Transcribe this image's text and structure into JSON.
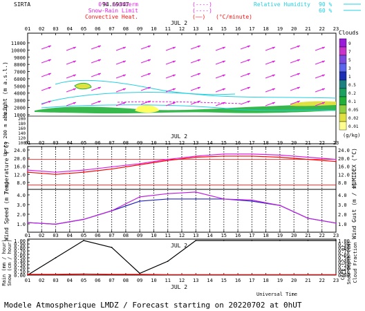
{
  "header": {
    "station": "SIRTA",
    "coords": "94.69347",
    "legend_left": [
      {
        "label": "0°C isotherm",
        "sample": "(----)",
        "color": "#e020e0"
      },
      {
        "label": "Snow-Rain Limit",
        "sample": "(----)",
        "color": "#e020e0"
      },
      {
        "label": "Convective Heat.",
        "sample": "(——)",
        "color": "#ff1010",
        "unit": "(°C/minute)"
      }
    ],
    "legend_right": {
      "label": "Relative Humidity",
      "v1": "90 %",
      "v2": "60 %",
      "color": "#20d0e0"
    }
  },
  "date_label": "JUL  2",
  "hours": [
    "01",
    "02",
    "03",
    "04",
    "05",
    "06",
    "07",
    "08",
    "09",
    "10",
    "11",
    "12",
    "13",
    "14",
    "15",
    "16",
    "17",
    "18",
    "19",
    "20",
    "21",
    "22",
    "23"
  ],
  "panel1": {
    "ylabel": "Height  (m a.s.l.)",
    "ylabel_low": "Up to 200 m a.s.l.",
    "ticks_upper": [
      "11000",
      "10000",
      "9000",
      "8000",
      "7000",
      "6000",
      "5000",
      "4000",
      "3000",
      "2000",
      "1000"
    ],
    "ticks_lower": [
      "200",
      "180",
      "160",
      "140",
      "120",
      "100"
    ],
    "clouds_title": "Clouds",
    "clouds_unit": "(g/kg)",
    "clouds_scale": [
      {
        "v": "9",
        "c": "#9a1cd8"
      },
      {
        "v": "7",
        "c": "#c832c8"
      },
      {
        "v": "5",
        "c": "#7a4ae0"
      },
      {
        "v": "3",
        "c": "#5a64ec"
      },
      {
        "v": "1",
        "c": "#1c30b4"
      },
      {
        "v": "0.5",
        "c": "#1c8080"
      },
      {
        "v": "0.2",
        "c": "#1ca060"
      },
      {
        "v": "0.1",
        "c": "#20b038"
      },
      {
        "v": "0.05",
        "c": "#90d040"
      },
      {
        "v": "0.02",
        "c": "#e0e040"
      },
      {
        "v": "0.01",
        "c": "#ffff90"
      }
    ]
  },
  "panel2": {
    "ylabel": "Temperature (°C)",
    "ylabel_right": "HUMIDEX (°C)",
    "ticks": [
      "24.0",
      "20.0",
      "16.0",
      "12.0",
      "8.0"
    ]
  },
  "panel3": {
    "ylabel": "Wind Speed (m / s)",
    "ylabel_right": "Wind Gust (m / s)",
    "ticks": [
      "4.0",
      "3.0",
      "2.0",
      "1.0"
    ]
  },
  "panel4": {
    "ylabel": "Rain (mm / hour)",
    "ylabel2": "Snow (cm / hour)",
    "ylabel_right": "CAPE (J / g)",
    "ylabel_right2": "Snow Depth (cm)",
    "ylabel_right3": "Cloud Fraction",
    "ticks": [
      "1.00",
      "0.90",
      "0.80",
      "0.70",
      "0.60",
      "0.50",
      "0.40",
      "0.30",
      "0.20",
      "0.10",
      "0.00"
    ]
  },
  "footer": {
    "xlabel": "Universal Time",
    "title": "Modele Atmospherique LMDZ / Forecast starting on 20220702 at 0hUT"
  },
  "chart_data": [
    {
      "type": "line",
      "name": "temperature",
      "x": [
        "01",
        "03",
        "05",
        "07",
        "09",
        "11",
        "13",
        "15",
        "17",
        "19",
        "21",
        "23"
      ],
      "series": [
        {
          "values": [
            14.0,
            13.0,
            14.0,
            15.5,
            17.5,
            19.5,
            21.0,
            21.5,
            21.5,
            21.0,
            20.0,
            19.0
          ],
          "color": "#ff0000"
        },
        {
          "values": [
            15.0,
            14.0,
            15.0,
            16.5,
            18.0,
            20.0,
            21.5,
            22.5,
            22.5,
            22.0,
            21.0,
            20.0
          ],
          "color": "#e020e0"
        }
      ],
      "ylim": [
        6,
        26
      ],
      "reflines": [
        20.0,
        8.0
      ]
    },
    {
      "type": "line",
      "name": "wind",
      "x": [
        "01",
        "03",
        "05",
        "07",
        "09",
        "11",
        "13",
        "15",
        "17",
        "19",
        "21",
        "23"
      ],
      "series": [
        {
          "values": [
            0.9,
            0.75,
            1.2,
            2.0,
            2.9,
            3.1,
            3.1,
            3.1,
            2.9,
            2.5,
            1.3,
            0.85
          ],
          "color": "#2020c0"
        },
        {
          "values": [
            0.9,
            0.75,
            1.2,
            2.0,
            3.3,
            3.6,
            3.75,
            3.1,
            3.0,
            2.5,
            1.3,
            0.85
          ],
          "color": "#c020e0"
        }
      ],
      "ylim": [
        0,
        4.0
      ]
    },
    {
      "type": "line",
      "name": "precip",
      "x": [
        "01",
        "03",
        "05",
        "07",
        "09",
        "11",
        "13",
        "15",
        "17",
        "19",
        "21",
        "23"
      ],
      "series": [
        {
          "values": [
            0.0,
            0.5,
            1.0,
            0.8,
            0.05,
            0.4,
            1.0,
            1.0,
            1.0,
            1.0,
            1.0,
            1.0
          ],
          "color": "#000000"
        },
        {
          "values": [
            0.02,
            0.02,
            0.03,
            0.02,
            0.02,
            0.01,
            0.01,
            0.01,
            0.01,
            0.01,
            0.01,
            0.01
          ],
          "color": "#ff0000"
        }
      ],
      "ylim": [
        0,
        1.0
      ]
    }
  ]
}
